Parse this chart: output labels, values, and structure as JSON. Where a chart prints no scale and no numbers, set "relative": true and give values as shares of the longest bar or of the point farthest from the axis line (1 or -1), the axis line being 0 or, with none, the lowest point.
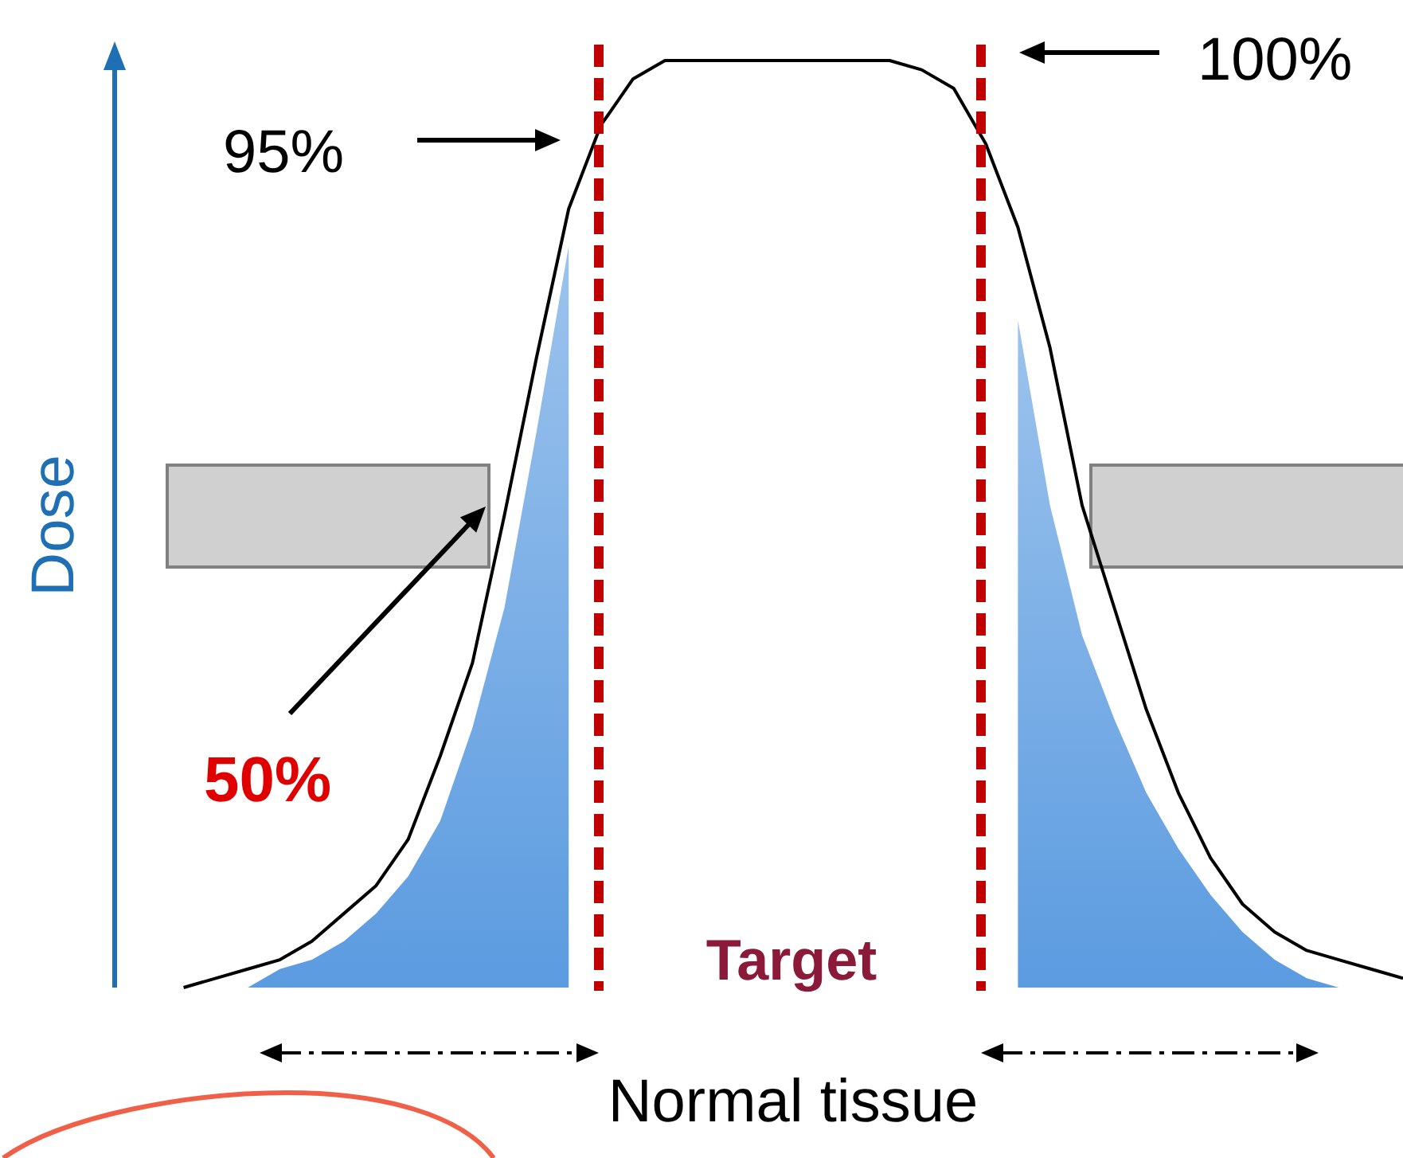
{
  "chart_data": {
    "type": "line",
    "relative": true,
    "xlabel": "Normal tissue",
    "ylabel": "Dose",
    "categories": [
      null,
      null,
      null,
      null,
      null,
      null,
      null,
      null,
      null,
      null,
      null,
      null,
      null,
      null,
      null,
      null,
      null,
      null,
      null,
      null,
      null,
      null,
      null,
      null,
      null,
      null,
      null,
      null,
      null,
      null,
      null,
      null,
      null,
      null,
      null,
      null,
      null,
      null,
      null,
      null,
      null
    ],
    "series": [
      {
        "color": "#000000",
        "values": [
          null,
          null,
          0,
          0.01,
          0.02,
          0.03,
          0.05,
          0.08,
          0.11,
          0.16,
          0.25,
          0.35,
          0.51,
          0.68,
          0.84,
          0.93,
          0.98,
          1,
          1,
          1,
          1,
          1,
          1,
          1,
          1,
          0.99,
          0.97,
          0.91,
          0.82,
          0.69,
          0.52,
          0.41,
          0.3,
          0.21,
          0.14,
          0.09,
          0.06,
          0.04,
          0.03,
          0.02,
          0.01
        ]
      },
      {
        "type": "area",
        "color": "#5b9be0",
        "values": [
          null,
          null,
          null,
          null,
          0,
          0.02,
          0.03,
          0.05,
          0.08,
          0.12,
          0.18,
          0.28,
          0.41,
          0.6,
          0.8,
          null,
          null,
          null,
          null,
          null,
          null,
          null,
          null,
          null,
          null,
          null,
          null,
          null,
          null,
          null,
          null,
          null,
          null,
          null,
          null,
          null,
          null,
          null,
          null,
          null,
          null
        ]
      },
      {
        "type": "area",
        "color": "#5b9be0",
        "values": [
          null,
          null,
          null,
          null,
          null,
          null,
          null,
          null,
          null,
          null,
          null,
          null,
          null,
          null,
          null,
          null,
          null,
          null,
          null,
          null,
          null,
          null,
          null,
          null,
          null,
          null,
          null,
          null,
          0.72,
          0.52,
          0.38,
          0.29,
          0.21,
          0.15,
          0.1,
          0.06,
          0.03,
          0.01,
          0,
          null,
          null
        ]
      }
    ],
    "annotations": [
      "95%",
      "100%",
      "50%",
      "Target"
    ]
  }
}
